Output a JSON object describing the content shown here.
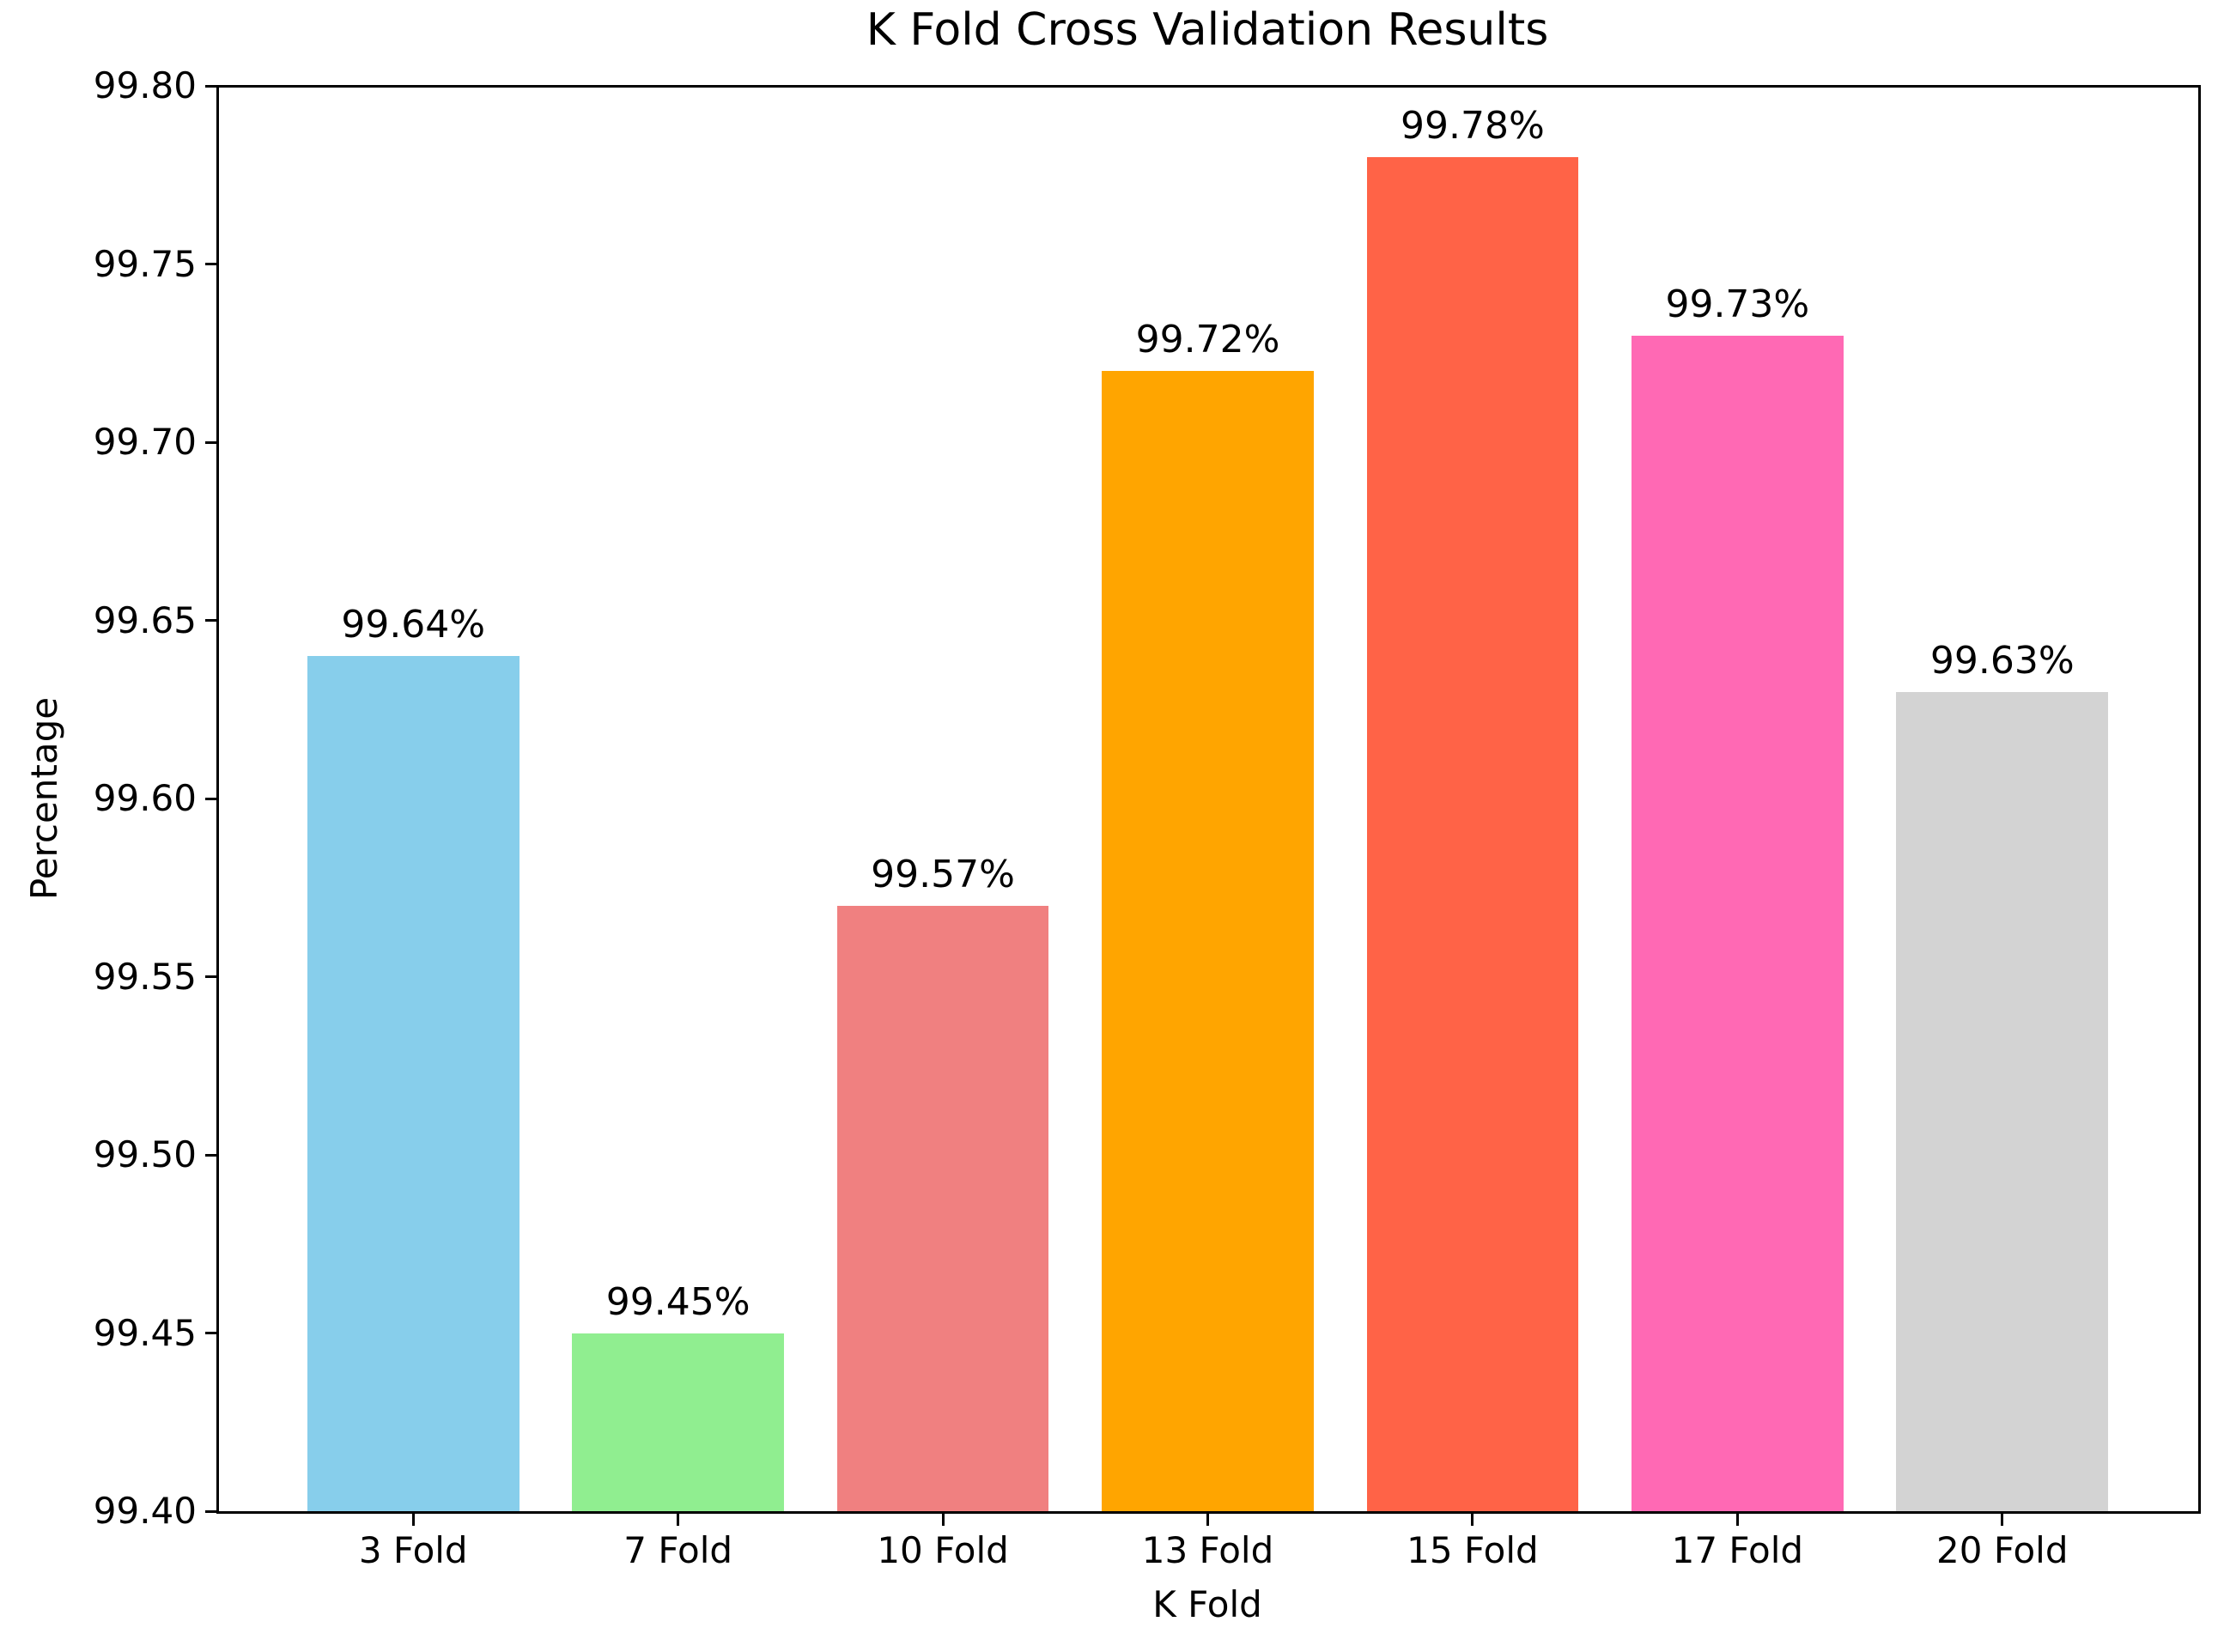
{
  "figure": {
    "background_color": "#ffffff",
    "axis_color": "#000000",
    "text_color": "#000000"
  },
  "chart_data": {
    "type": "bar",
    "title": "K Fold Cross Validation Results",
    "xlabel": "K Fold",
    "ylabel": "Percentage",
    "categories": [
      "3 Fold",
      "7 Fold",
      "10 Fold",
      "13 Fold",
      "15 Fold",
      "17 Fold",
      "20 Fold"
    ],
    "values": [
      99.64,
      99.45,
      99.57,
      99.72,
      99.78,
      99.73,
      99.63
    ],
    "bar_labels": [
      "99.64%",
      "99.45%",
      "99.57%",
      "99.72%",
      "99.78%",
      "99.73%",
      "99.63%"
    ],
    "bar_colors": [
      "#87CEEB",
      "#90EE90",
      "#F08080",
      "#FFA500",
      "#FF6347",
      "#FF69B4",
      "#D3D3D3"
    ],
    "ylim": [
      99.4,
      99.8
    ],
    "yticks": [
      99.4,
      99.45,
      99.5,
      99.55,
      99.6,
      99.65,
      99.7,
      99.75,
      99.8
    ],
    "ytick_labels": [
      "99.40",
      "99.45",
      "99.50",
      "99.55",
      "99.60",
      "99.65",
      "99.70",
      "99.75",
      "99.80"
    ],
    "grid": false,
    "legend": null
  }
}
